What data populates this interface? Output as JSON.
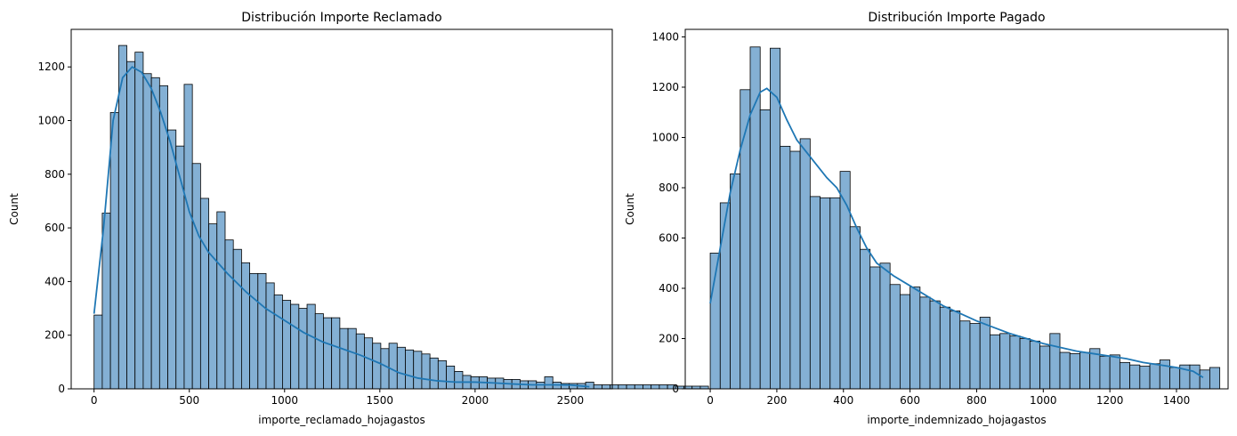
{
  "chart_data": [
    {
      "type": "bar",
      "subtype": "histogram",
      "title": "Distribución Importe Reclamado",
      "xlabel": "importe_reclamado_hojagastos",
      "ylabel": "Count",
      "xlim": [
        -120,
        2720
      ],
      "ylim": [
        0,
        1340
      ],
      "xticks": [
        0,
        500,
        1000,
        1500,
        2000,
        2500
      ],
      "yticks": [
        0,
        200,
        400,
        600,
        800,
        1000,
        1200
      ],
      "bin_start": 0,
      "bin_width": 43,
      "counts": [
        275,
        655,
        1030,
        1280,
        1220,
        1255,
        1175,
        1160,
        1130,
        965,
        905,
        1135,
        840,
        710,
        615,
        660,
        555,
        520,
        470,
        430,
        430,
        395,
        350,
        330,
        315,
        300,
        315,
        280,
        265,
        265,
        225,
        225,
        205,
        190,
        170,
        150,
        170,
        155,
        145,
        140,
        130,
        115,
        105,
        85,
        65,
        50,
        45,
        45,
        40,
        40,
        35,
        35,
        30,
        30,
        25,
        45,
        25,
        20,
        20,
        20,
        25,
        15,
        15,
        15,
        15,
        15,
        15,
        15,
        15,
        15,
        15,
        10,
        10,
        10,
        10
      ],
      "kde": [
        [
          0,
          280
        ],
        [
          50,
          600
        ],
        [
          100,
          1000
        ],
        [
          150,
          1160
        ],
        [
          200,
          1200
        ],
        [
          250,
          1180
        ],
        [
          300,
          1120
        ],
        [
          350,
          1030
        ],
        [
          400,
          920
        ],
        [
          450,
          790
        ],
        [
          500,
          660
        ],
        [
          550,
          570
        ],
        [
          600,
          510
        ],
        [
          700,
          430
        ],
        [
          800,
          360
        ],
        [
          900,
          300
        ],
        [
          1000,
          255
        ],
        [
          1100,
          210
        ],
        [
          1200,
          175
        ],
        [
          1300,
          150
        ],
        [
          1400,
          125
        ],
        [
          1500,
          95
        ],
        [
          1600,
          60
        ],
        [
          1700,
          40
        ],
        [
          1800,
          30
        ],
        [
          1900,
          25
        ],
        [
          2000,
          25
        ],
        [
          2100,
          22
        ],
        [
          2200,
          18
        ],
        [
          2300,
          15
        ],
        [
          2400,
          15
        ],
        [
          2500,
          14
        ],
        [
          2600,
          8
        ]
      ],
      "colors": {
        "bar_fill": "#84b0d4",
        "bar_edge": "#000000",
        "kde": "#1f77b4"
      }
    },
    {
      "type": "bar",
      "subtype": "histogram",
      "title": "Distribución Importe Pagado",
      "xlabel": "importe_indemnizado_hojagastos",
      "ylabel": "Count",
      "xlim": [
        -75,
        1555
      ],
      "ylim": [
        0,
        1430
      ],
      "xticks": [
        0,
        200,
        400,
        600,
        800,
        1000,
        1200,
        1400
      ],
      "yticks": [
        0,
        200,
        400,
        600,
        800,
        1000,
        1200,
        1400
      ],
      "bin_start": 0,
      "bin_width": 30,
      "counts": [
        540,
        740,
        855,
        1190,
        1360,
        1110,
        1355,
        965,
        945,
        995,
        765,
        760,
        760,
        865,
        645,
        555,
        485,
        500,
        415,
        375,
        405,
        365,
        350,
        325,
        310,
        270,
        260,
        285,
        215,
        220,
        210,
        200,
        190,
        170,
        220,
        145,
        140,
        145,
        160,
        130,
        135,
        105,
        95,
        90,
        100,
        115,
        85,
        95,
        95,
        75,
        85
      ],
      "kde": [
        [
          0,
          340
        ],
        [
          30,
          560
        ],
        [
          60,
          780
        ],
        [
          90,
          950
        ],
        [
          120,
          1090
        ],
        [
          150,
          1180
        ],
        [
          170,
          1195
        ],
        [
          200,
          1160
        ],
        [
          230,
          1070
        ],
        [
          260,
          990
        ],
        [
          290,
          940
        ],
        [
          320,
          890
        ],
        [
          350,
          840
        ],
        [
          380,
          800
        ],
        [
          410,
          730
        ],
        [
          440,
          640
        ],
        [
          470,
          560
        ],
        [
          500,
          500
        ],
        [
          550,
          450
        ],
        [
          600,
          410
        ],
        [
          650,
          370
        ],
        [
          700,
          330
        ],
        [
          750,
          300
        ],
        [
          800,
          270
        ],
        [
          850,
          245
        ],
        [
          900,
          220
        ],
        [
          950,
          200
        ],
        [
          1000,
          180
        ],
        [
          1050,
          165
        ],
        [
          1100,
          150
        ],
        [
          1150,
          140
        ],
        [
          1200,
          130
        ],
        [
          1250,
          120
        ],
        [
          1300,
          105
        ],
        [
          1350,
          95
        ],
        [
          1400,
          85
        ],
        [
          1450,
          70
        ],
        [
          1480,
          45
        ]
      ],
      "colors": {
        "bar_fill": "#84b0d4",
        "bar_edge": "#000000",
        "kde": "#1f77b4"
      }
    }
  ]
}
